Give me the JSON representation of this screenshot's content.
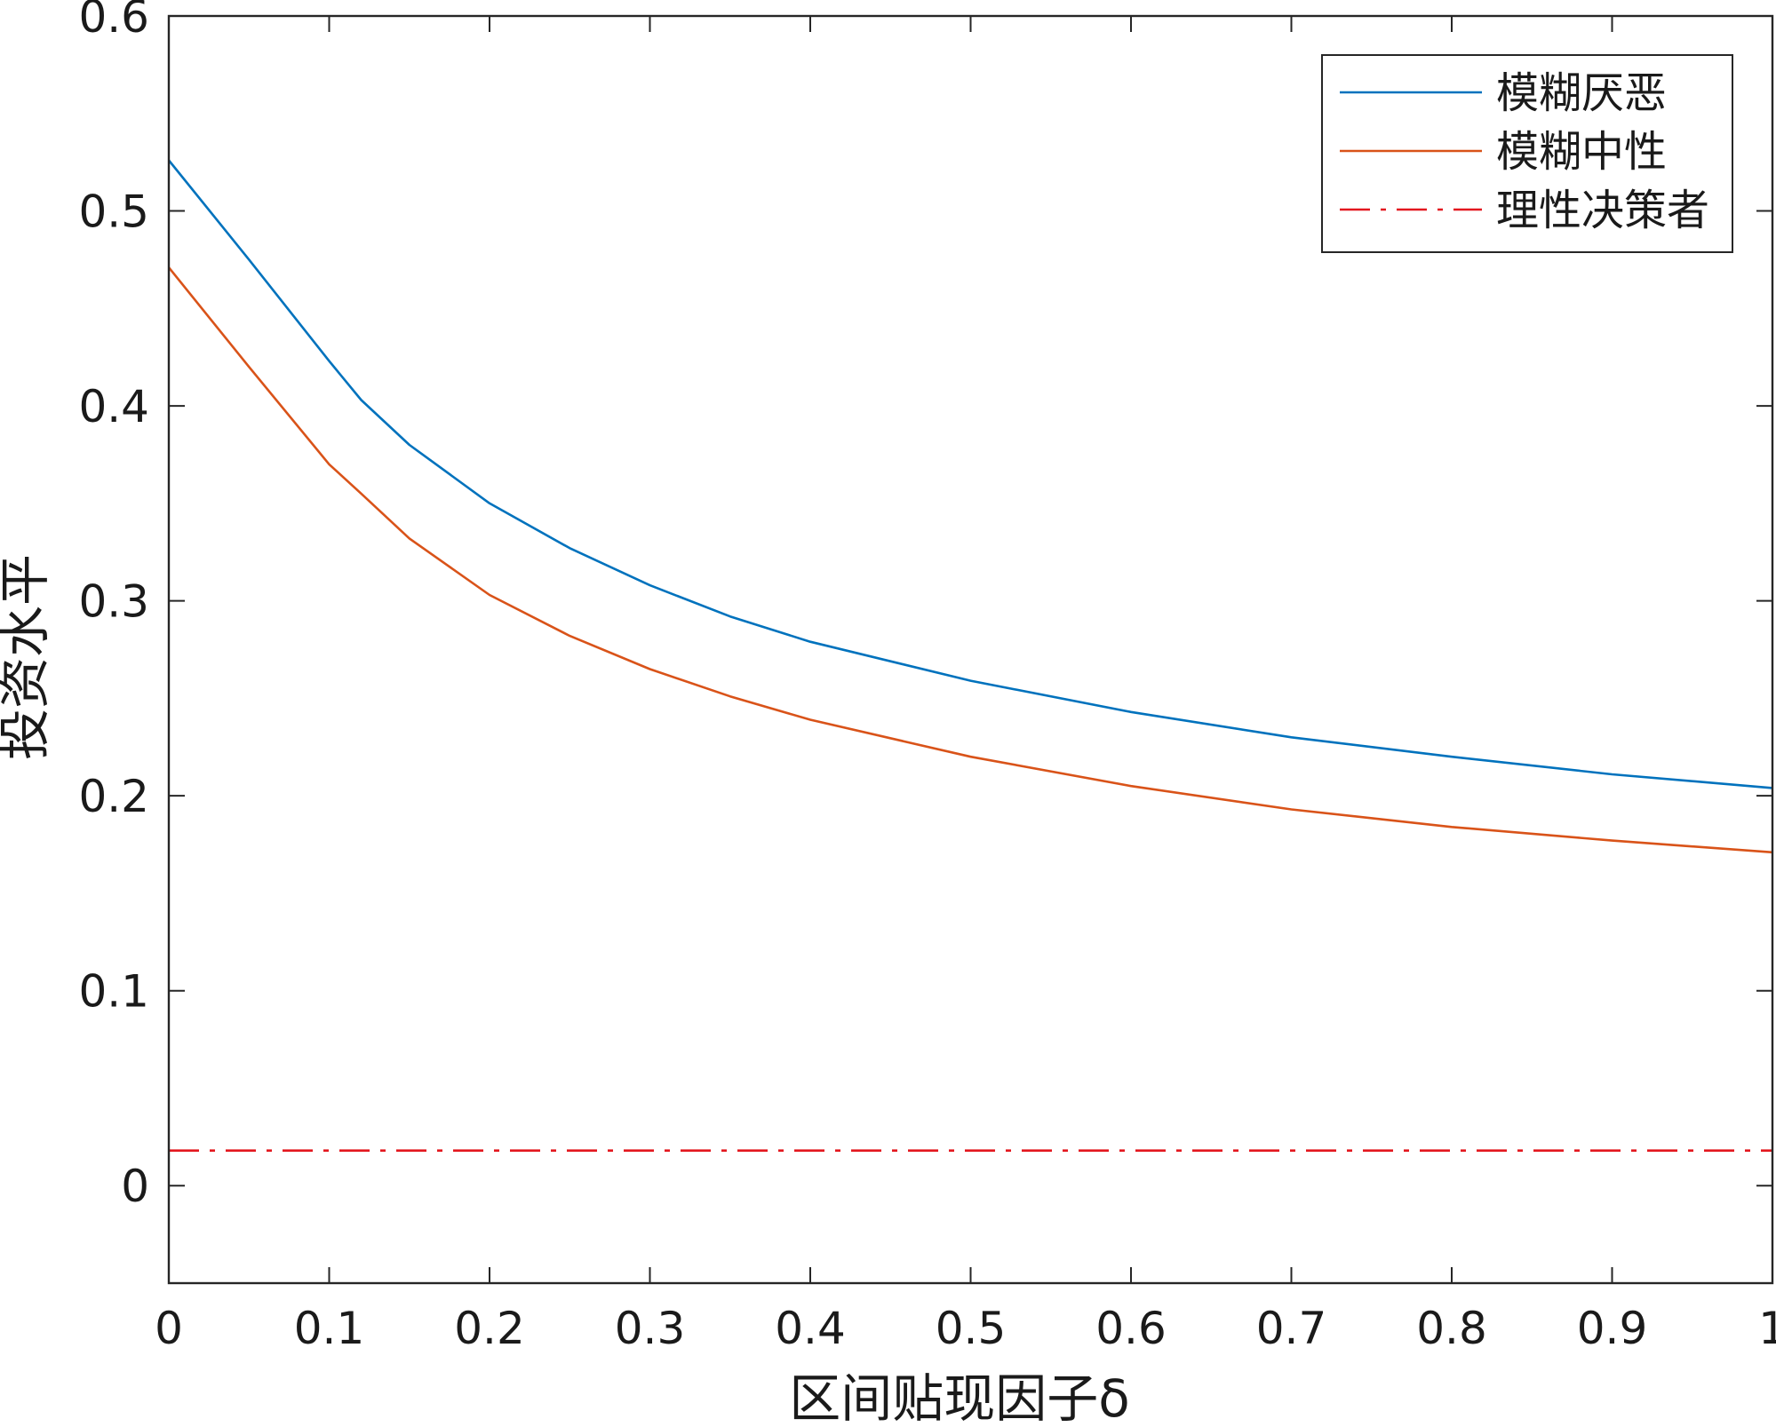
{
  "chart_data": {
    "type": "line",
    "title": "",
    "xlabel": "区间贴现因子δ",
    "ylabel": "投资水平",
    "xlim": [
      0,
      1
    ],
    "ylim": [
      -0.05,
      0.6
    ],
    "xticks": [
      0,
      0.1,
      0.2,
      0.3,
      0.4,
      0.5,
      0.6,
      0.7,
      0.8,
      0.9,
      1
    ],
    "xtick_labels": [
      "0",
      "0.1",
      "0.2",
      "0.3",
      "0.4",
      "0.5",
      "0.6",
      "0.7",
      "0.8",
      "0.9",
      "1"
    ],
    "yticks": [
      0,
      0.1,
      0.2,
      0.3,
      0.4,
      0.5,
      0.6
    ],
    "ytick_labels": [
      "0",
      "0.1",
      "0.2",
      "0.3",
      "0.4",
      "0.5",
      "0.6"
    ],
    "grid": false,
    "legend_position": "top-right",
    "series": [
      {
        "name": "模糊厌恶",
        "color": "#0072BD",
        "style": "solid",
        "x": [
          0,
          0.05,
          0.1,
          0.12,
          0.15,
          0.2,
          0.25,
          0.3,
          0.35,
          0.4,
          0.5,
          0.6,
          0.7,
          0.8,
          0.9,
          1.0
        ],
        "y": [
          0.526,
          0.475,
          0.423,
          0.403,
          0.38,
          0.35,
          0.327,
          0.308,
          0.292,
          0.279,
          0.259,
          0.243,
          0.23,
          0.22,
          0.211,
          0.204
        ]
      },
      {
        "name": "模糊中性",
        "color": "#D95319",
        "style": "solid",
        "x": [
          0,
          0.05,
          0.1,
          0.12,
          0.15,
          0.2,
          0.25,
          0.3,
          0.35,
          0.4,
          0.5,
          0.6,
          0.7,
          0.8,
          0.9,
          1.0
        ],
        "y": [
          0.471,
          0.42,
          0.37,
          0.355,
          0.332,
          0.303,
          0.282,
          0.265,
          0.251,
          0.239,
          0.22,
          0.205,
          0.193,
          0.184,
          0.177,
          0.171
        ]
      },
      {
        "name": "理性决策者",
        "color": "#E3171E",
        "style": "dashdot",
        "x": [
          0,
          1
        ],
        "y": [
          0.018,
          0.018
        ]
      }
    ]
  }
}
